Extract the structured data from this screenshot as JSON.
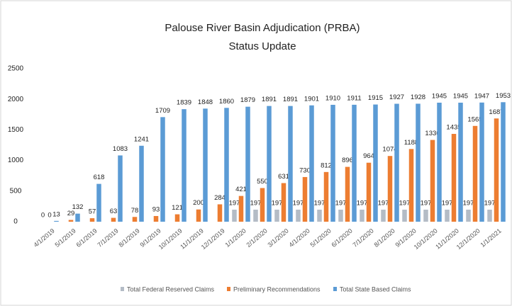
{
  "chart_data": {
    "type": "bar",
    "title": "Palouse River Basin Adjudication (PRBA)",
    "subtitle": "Status Update",
    "categories": [
      "4/1/2019",
      "5/1/2019",
      "6/1/2019",
      "7/1/2019",
      "8/1/2019",
      "9/1/2019",
      "10/1/2019",
      "11/1/2019",
      "12/1/2019",
      "1/1/2020",
      "2/1/2020",
      "3/1/2020",
      "4/1/2020",
      "5/1/2020",
      "6/1/2020",
      "7/1/2020",
      "8/1/2020",
      "9/1/2020",
      "10/1/2020",
      "11/1/2020",
      "12/1/2020",
      "1/1/2021"
    ],
    "series": [
      {
        "name": "Total Federal Reserved Claims",
        "color": "#b4bcc6",
        "values": [
          0,
          null,
          null,
          null,
          null,
          null,
          null,
          null,
          null,
          197,
          197,
          197,
          197,
          197,
          197,
          197,
          197,
          197,
          197,
          197,
          197,
          197
        ]
      },
      {
        "name": "Preliminary Recommendations",
        "color": "#ed7d31",
        "values": [
          0,
          29,
          57,
          63,
          78,
          93,
          121,
          200,
          284,
          421,
          550,
          631,
          730,
          812,
          896,
          964,
          1074,
          1188,
          1336,
          1435,
          1565,
          1687
        ]
      },
      {
        "name": "Total State Based Claims",
        "color": "#5b9bd5",
        "values": [
          13,
          132,
          618,
          1083,
          1241,
          1709,
          1839,
          1848,
          1860,
          1879,
          1891,
          1891,
          1901,
          1910,
          1911,
          1915,
          1927,
          1928,
          1945,
          1945,
          1947,
          1953
        ]
      }
    ],
    "ylim": [
      0,
      2500
    ],
    "yticks": [
      0,
      500,
      1000,
      1500,
      2000,
      2500
    ],
    "grid": false,
    "legend": "bottom"
  }
}
